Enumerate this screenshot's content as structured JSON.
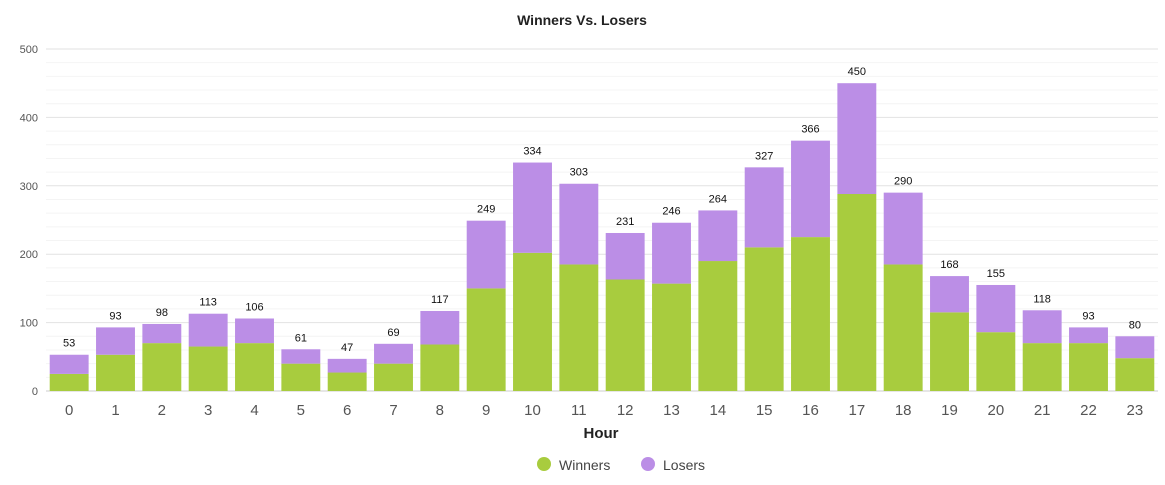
{
  "chart_data": {
    "type": "bar",
    "stacked": true,
    "title": "Winners Vs. Losers",
    "xlabel": "Hour",
    "ylabel": "",
    "ylim": [
      0,
      500
    ],
    "yticks": [
      0,
      100,
      200,
      300,
      400,
      500
    ],
    "grid": true,
    "legend_position": "bottom-center",
    "categories": [
      "0",
      "1",
      "2",
      "3",
      "4",
      "5",
      "6",
      "7",
      "8",
      "9",
      "10",
      "11",
      "12",
      "13",
      "14",
      "15",
      "16",
      "17",
      "18",
      "19",
      "20",
      "21",
      "22",
      "23"
    ],
    "series": [
      {
        "name": "Winners",
        "color": "#a8cc3e",
        "values": [
          25,
          53,
          70,
          65,
          70,
          40,
          27,
          40,
          68,
          150,
          202,
          185,
          163,
          157,
          190,
          210,
          225,
          288,
          185,
          115,
          86,
          70,
          70,
          48
        ]
      },
      {
        "name": "Losers",
        "color": "#bb8ee6",
        "values": [
          28,
          40,
          28,
          48,
          36,
          21,
          20,
          29,
          49,
          99,
          132,
          118,
          68,
          89,
          74,
          117,
          141,
          162,
          105,
          53,
          69,
          48,
          23,
          32
        ]
      }
    ],
    "totals": [
      53,
      93,
      98,
      113,
      106,
      61,
      47,
      69,
      117,
      249,
      334,
      303,
      231,
      246,
      264,
      327,
      366,
      450,
      290,
      168,
      155,
      118,
      93,
      80
    ]
  }
}
